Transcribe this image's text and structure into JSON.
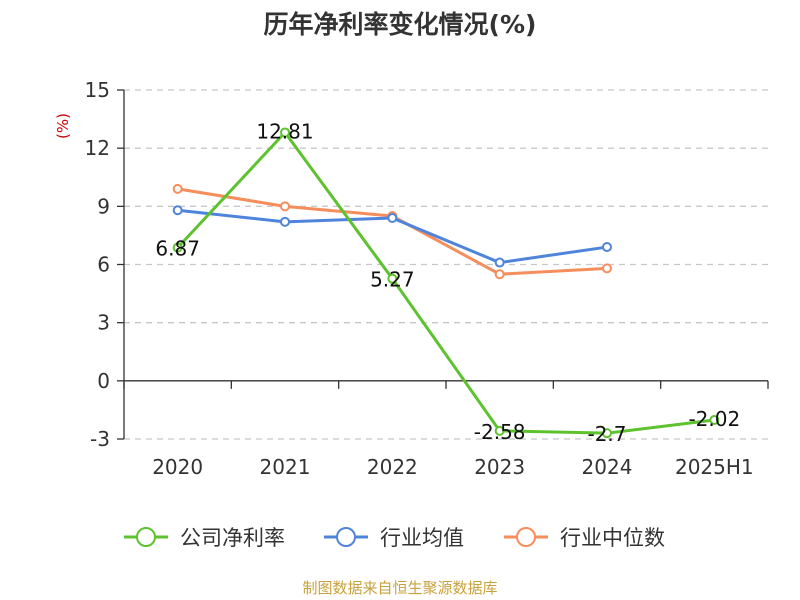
{
  "chart_data": {
    "type": "line",
    "title": "历年净利率变化情况(%)",
    "ylabel": "(%)",
    "categories": [
      "2020",
      "2021",
      "2022",
      "2023",
      "2024",
      "2025H1"
    ],
    "ylim": [
      -3,
      15
    ],
    "yticks": [
      -3,
      0,
      3,
      6,
      9,
      12,
      15
    ],
    "grid": true,
    "legend_position": "bottom",
    "series": [
      {
        "name": "公司净利率",
        "color": "#5ec22e",
        "values": [
          6.87,
          12.81,
          5.27,
          -2.58,
          -2.7,
          -2.02
        ],
        "labels": [
          "6.87",
          "12.81",
          "5.27",
          "-2.58",
          "-2.7",
          "-2.02"
        ]
      },
      {
        "name": "行业均值",
        "color": "#4f84db",
        "values": [
          8.8,
          8.2,
          8.4,
          6.1,
          6.9,
          null
        ]
      },
      {
        "name": "行业中位数",
        "color": "#f58d5c",
        "values": [
          9.9,
          9.0,
          8.5,
          5.5,
          5.8,
          null
        ]
      }
    ]
  },
  "source": "制图数据来自恒生聚源数据库"
}
